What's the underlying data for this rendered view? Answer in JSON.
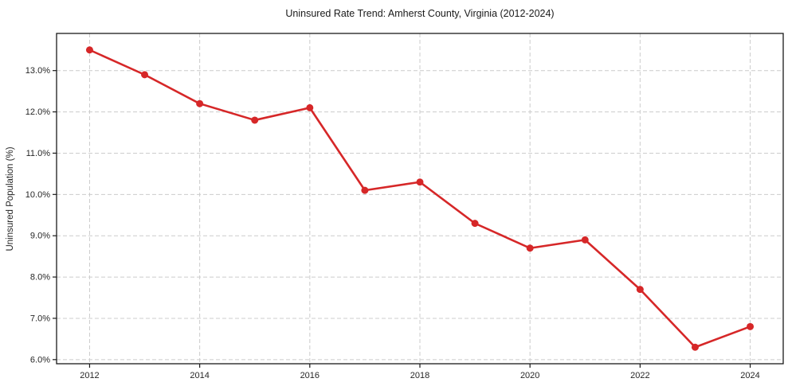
{
  "chart_data": {
    "type": "line",
    "title": "Uninsured Rate Trend: Amherst County, Virginia (2012-2024)",
    "xlabel": "",
    "ylabel": "Uninsured Population (%)",
    "x": [
      2012,
      2013,
      2014,
      2015,
      2016,
      2017,
      2018,
      2019,
      2020,
      2021,
      2022,
      2023,
      2024
    ],
    "series": [
      {
        "name": "Uninsured rate",
        "values": [
          13.5,
          12.9,
          12.2,
          11.8,
          12.1,
          10.1,
          10.3,
          9.3,
          8.7,
          8.9,
          7.7,
          6.3,
          6.8
        ]
      }
    ],
    "x_ticks": [
      2012,
      2014,
      2016,
      2018,
      2020,
      2022,
      2024
    ],
    "x_tick_labels": [
      "2012",
      "2014",
      "2016",
      "2018",
      "2020",
      "2022",
      "2024"
    ],
    "y_ticks": [
      6,
      7,
      8,
      9,
      10,
      11,
      12,
      13
    ],
    "y_tick_labels": [
      "6.0%",
      "7.0%",
      "8.0%",
      "9.0%",
      "10.0%",
      "11.0%",
      "12.0%",
      "13.0%"
    ],
    "xlim": [
      2011.4,
      2024.6
    ],
    "ylim": [
      5.9,
      13.9
    ],
    "grid": true,
    "grid_style": "dashed",
    "legend": "none",
    "colors": {
      "line": "#d62728",
      "marker": "#d62728",
      "grid": "#cccccc",
      "spine": "#1a1a1a",
      "background": "#ffffff",
      "text": "#262626"
    },
    "marker": "circle"
  }
}
